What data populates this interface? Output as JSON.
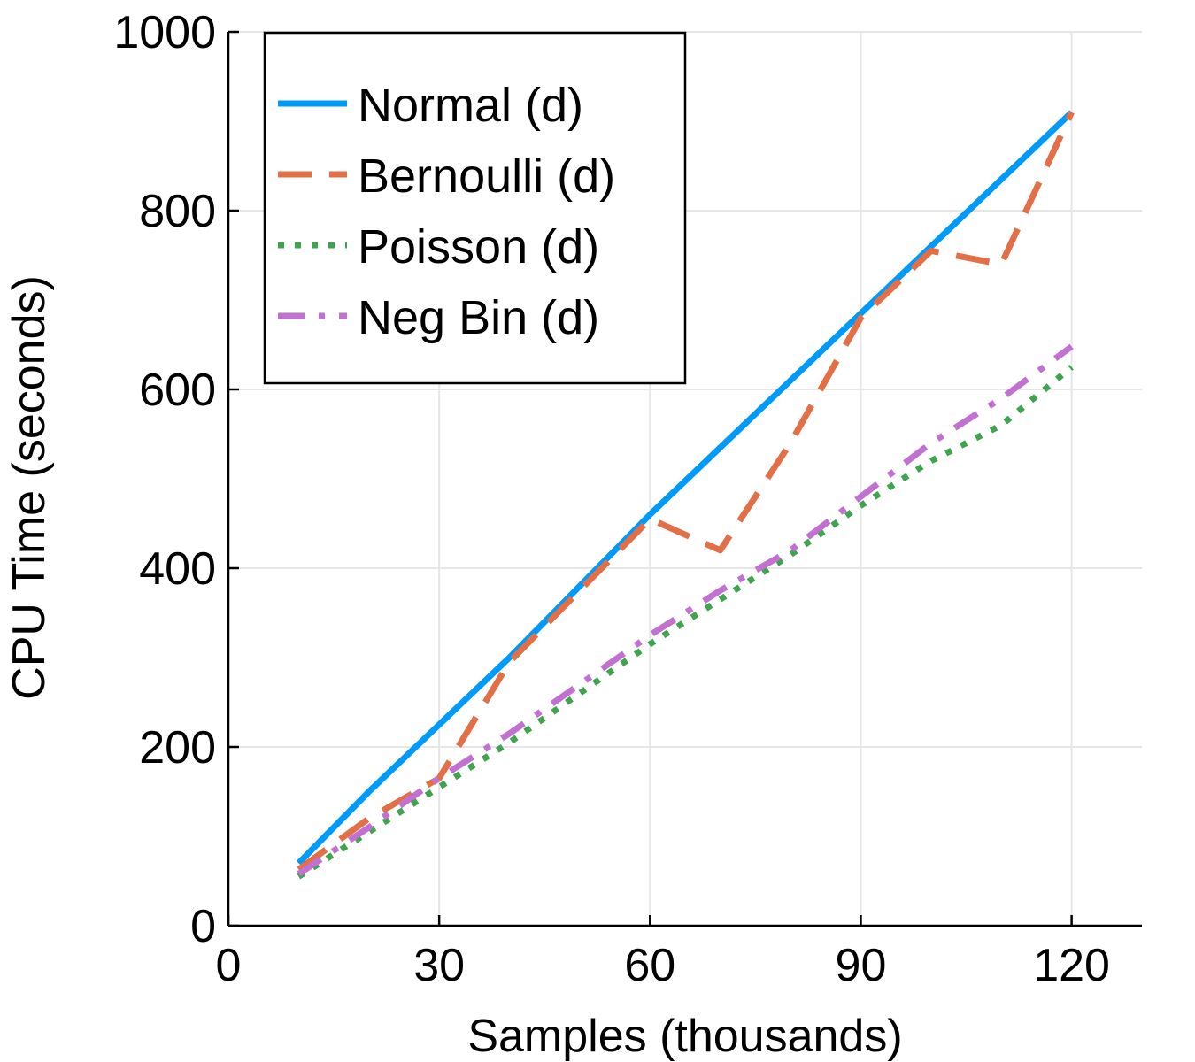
{
  "chart_data": {
    "type": "line",
    "title": "",
    "xlabel": "Samples (thousands)",
    "ylabel": "CPU Time (seconds)",
    "xlim": [
      0,
      130
    ],
    "ylim": [
      0,
      1000
    ],
    "xticks": [
      0,
      30,
      60,
      90,
      120
    ],
    "yticks": [
      0,
      200,
      400,
      600,
      800,
      1000
    ],
    "xtick_labels": [
      "0",
      "30",
      "60",
      "90",
      "120"
    ],
    "ytick_labels": [
      "0",
      "200",
      "400",
      "600",
      "800",
      "1000"
    ],
    "grid": true,
    "legend_position": "top-left",
    "x": [
      10,
      20,
      30,
      40,
      50,
      60,
      70,
      80,
      90,
      100,
      110,
      120
    ],
    "series": [
      {
        "name": "Normal (d)",
        "color": "#009AFA",
        "style": "solid",
        "values": [
          70,
          150,
          225,
          300,
          380,
          460,
          535,
          610,
          685,
          760,
          835,
          910
        ]
      },
      {
        "name": "Bernoulli (d)",
        "color": "#E26F46",
        "style": "dash",
        "values": [
          63,
          120,
          165,
          295,
          375,
          455,
          420,
          540,
          680,
          755,
          740,
          910
        ]
      },
      {
        "name": "Poisson (d)",
        "color": "#3EA44E",
        "style": "dot",
        "values": [
          55,
          105,
          155,
          205,
          260,
          315,
          365,
          415,
          470,
          520,
          560,
          625
        ]
      },
      {
        "name": "Neg Bin (d)",
        "color": "#C271D2",
        "style": "dashdot",
        "values": [
          58,
          110,
          165,
          215,
          270,
          325,
          375,
          420,
          480,
          540,
          590,
          648
        ]
      }
    ]
  }
}
